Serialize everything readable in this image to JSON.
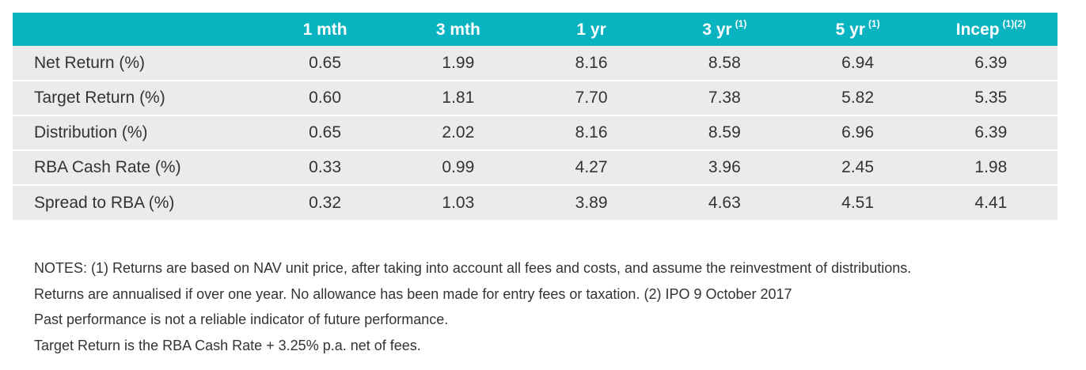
{
  "table": {
    "columns": [
      {
        "label": "1 mth",
        "sup": ""
      },
      {
        "label": "3 mth",
        "sup": ""
      },
      {
        "label": "1 yr",
        "sup": ""
      },
      {
        "label": "3 yr",
        "sup": "(1)"
      },
      {
        "label": "5 yr",
        "sup": "(1)"
      },
      {
        "label": "Incep",
        "sup": "(1)(2)"
      }
    ],
    "rows": [
      {
        "label": "Net Return (%)",
        "values": [
          "0.65",
          "1.99",
          "8.16",
          "8.58",
          "6.94",
          "6.39"
        ]
      },
      {
        "label": "Target Return (%)",
        "values": [
          "0.60",
          "1.81",
          "7.70",
          "7.38",
          "5.82",
          "5.35"
        ]
      },
      {
        "label": "Distribution (%)",
        "values": [
          "0.65",
          "2.02",
          "8.16",
          "8.59",
          "6.96",
          "6.39"
        ]
      },
      {
        "label": "RBA Cash Rate (%)",
        "values": [
          "0.33",
          "0.99",
          "4.27",
          "3.96",
          "2.45",
          "1.98"
        ]
      },
      {
        "label": "Spread to RBA (%)",
        "values": [
          "0.32",
          "1.03",
          "3.89",
          "4.63",
          "4.51",
          "4.41"
        ]
      }
    ]
  },
  "notes": [
    "NOTES: (1) Returns are based on NAV unit price, after taking into account all fees and costs, and assume the reinvestment of distributions.",
    "Returns are annualised if over one year. No allowance has been made for entry fees or taxation. (2) IPO 9 October 2017",
    "Past performance is not a reliable indicator of future performance.",
    "Target Return is the RBA Cash Rate + 3.25% p.a. net of fees."
  ],
  "colors": {
    "header_bg": "#0ab3c0",
    "header_text": "#ffffff",
    "row_bg": "#ebebeb",
    "body_text": "#333333"
  }
}
